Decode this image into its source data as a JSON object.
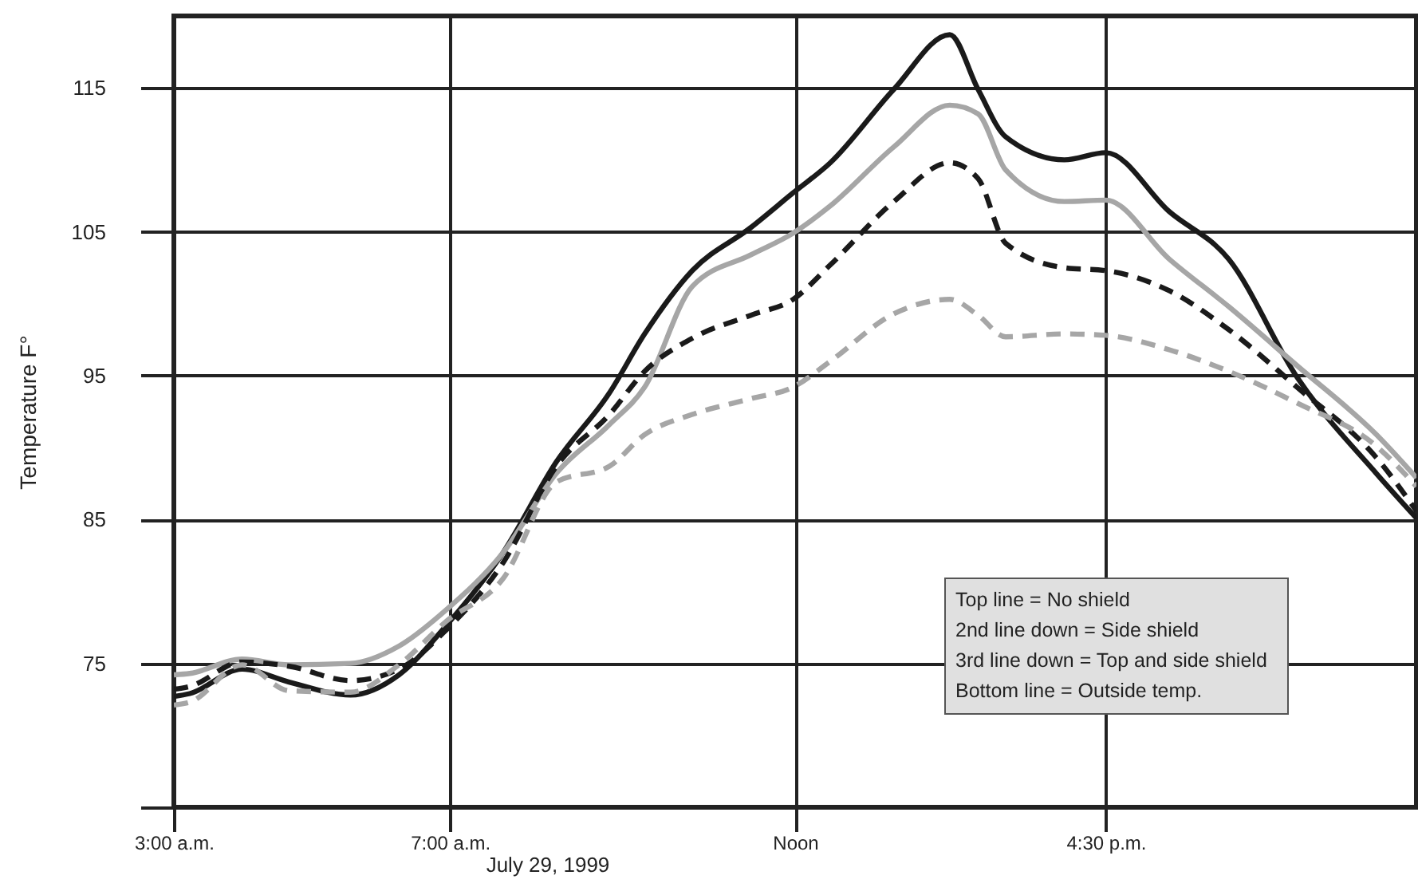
{
  "chart_data": {
    "type": "line",
    "xlabel": "July 29, 1999",
    "ylabel": "Temperature F°",
    "x": [
      3.0,
      3.23,
      3.99,
      4.67,
      5.56,
      6.26,
      6.94,
      7.77,
      8.54,
      9.31,
      9.82,
      10.51,
      11.36,
      11.97,
      12.51,
      13.43,
      14.24,
      14.65,
      15.05,
      15.9,
      16.5,
      17.42,
      18.28,
      19.27,
      20.42,
      21.0
    ],
    "series": [
      {
        "color": "#1a1a1a",
        "line_style": "solid",
        "values": [
          72.7,
          72.9,
          74.6,
          73.7,
          72.8,
          74.2,
          77.6,
          82.7,
          89.0,
          93.8,
          97.9,
          102.3,
          105.3,
          107.7,
          109.8,
          114.9,
          118.7,
          114.9,
          111.6,
          110.0,
          110.5,
          106.4,
          103.1,
          94.9,
          88.2,
          85.1
        ]
      },
      {
        "color": "#a6a6a6",
        "line_style": "solid",
        "values": [
          74.2,
          74.3,
          75.3,
          74.9,
          75.0,
          76.2,
          78.7,
          82.7,
          88.2,
          91.6,
          94.2,
          101.2,
          103.4,
          104.9,
          106.8,
          110.9,
          113.8,
          113.2,
          109.3,
          107.1,
          107.2,
          103.1,
          99.8,
          95.7,
          90.9,
          87.9
        ]
      },
      {
        "color": "#1a1a1a",
        "line_style": "dashed",
        "values": [
          73.2,
          73.4,
          75.1,
          74.8,
          73.8,
          74.6,
          77.3,
          82.0,
          88.7,
          92.3,
          95.3,
          97.6,
          99.2,
          100.3,
          102.7,
          107.1,
          109.8,
          108.7,
          104.2,
          102.5,
          102.3,
          100.9,
          98.2,
          94.2,
          89.3,
          85.6
        ]
      },
      {
        "color": "#a6a6a6",
        "line_style": "dashed",
        "values": [
          72.1,
          72.3,
          74.9,
          73.1,
          73.0,
          74.9,
          77.9,
          80.9,
          87.6,
          88.7,
          90.9,
          92.3,
          93.4,
          94.2,
          96.0,
          99.3,
          100.3,
          99.2,
          97.7,
          97.9,
          97.8,
          96.8,
          95.3,
          93.1,
          90.1,
          87.3
        ]
      }
    ],
    "xlim": [
      3,
      21
    ],
    "xticks": [
      {
        "value": 3,
        "label": "3:00 a.m."
      },
      {
        "value": 7,
        "label": "7:00 a.m."
      },
      {
        "value": 12,
        "label": "Noon"
      },
      {
        "value": 16.5,
        "label": "4:30 p.m."
      }
    ],
    "ylim": [
      65,
      120
    ],
    "yticks": [
      {
        "value": 65,
        "label": null
      },
      75,
      85,
      95,
      105,
      115
    ],
    "grid": true,
    "marker": "none",
    "annotations": [
      "Top line = No shield",
      "2nd line down = Side shield",
      "3rd line down = Top and side shield",
      "Bottom line = Outside temp."
    ]
  }
}
